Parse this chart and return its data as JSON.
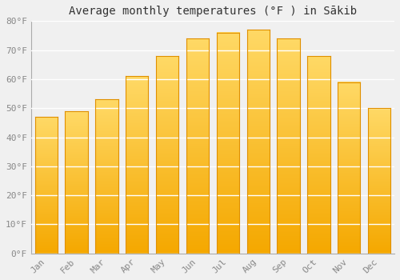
{
  "title": "Average monthly temperatures (°F ) in Sākib",
  "months": [
    "Jan",
    "Feb",
    "Mar",
    "Apr",
    "May",
    "Jun",
    "Jul",
    "Aug",
    "Sep",
    "Oct",
    "Nov",
    "Dec"
  ],
  "values": [
    47,
    49,
    53,
    61,
    68,
    74,
    76,
    77,
    74,
    68,
    59,
    50
  ],
  "bar_color_bottom": "#F5A800",
  "bar_color_top": "#FFD966",
  "bar_edge_color": "#E09000",
  "background_color": "#f0f0f0",
  "plot_bg_color": "#f0f0f0",
  "ylim": [
    0,
    80
  ],
  "yticks": [
    0,
    10,
    20,
    30,
    40,
    50,
    60,
    70,
    80
  ],
  "ylabel_suffix": "°F",
  "grid_color": "#ffffff",
  "title_fontsize": 10,
  "tick_fontsize": 8,
  "tick_color": "#888888"
}
